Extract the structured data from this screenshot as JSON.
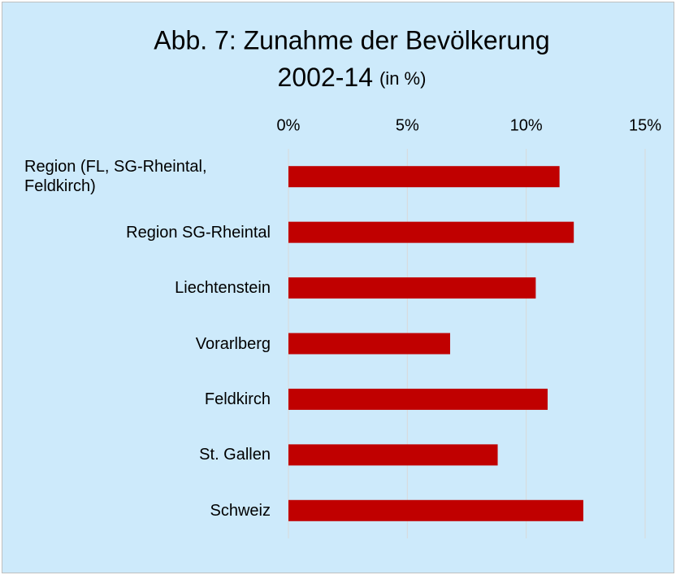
{
  "chart_data": {
    "type": "bar",
    "orientation": "horizontal",
    "title": [
      "Abb. 7: Zunahme der Bevölkerung",
      "2002-14"
    ],
    "unit_label": "(in %)",
    "categories": [
      "Region (FL, SG-Rheintal, Feldkirch)",
      "Region SG-Rheintal",
      "Liechtenstein",
      "Vorarlberg",
      "Feldkirch",
      "St. Gallen",
      "Schweiz"
    ],
    "values": [
      11.4,
      12.0,
      10.4,
      6.8,
      10.9,
      8.8,
      12.4
    ],
    "color": "#c00000",
    "xlim": [
      0,
      15
    ],
    "xticks": [
      {
        "value": 0,
        "label": "0%"
      },
      {
        "value": 5,
        "label": "5%"
      },
      {
        "value": 10,
        "label": "10%"
      },
      {
        "value": 15,
        "label": "15%"
      }
    ],
    "grid": true
  }
}
